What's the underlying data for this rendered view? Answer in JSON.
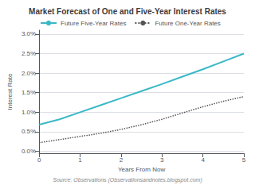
{
  "chart_data": {
    "type": "line",
    "title": "Market Forecast of One and Five-Year Interest Rates",
    "xlabel": "Years From Now",
    "ylabel": "Interest Rate",
    "source": "Source: Observations (Observationsandnotes.blogspot.com)",
    "x": [
      0,
      0.5,
      1,
      1.5,
      2,
      2.5,
      3,
      3.5,
      4,
      4.5,
      5
    ],
    "series": [
      {
        "name": "Future Five-Year Rates",
        "color": "#3ab8c8",
        "line_style": "solid",
        "values": [
          0.0068,
          0.0082,
          0.01,
          0.0118,
          0.0136,
          0.0154,
          0.0172,
          0.0191,
          0.021,
          0.023,
          0.025
        ]
      },
      {
        "name": "Future One-Year Rates",
        "color": "#555555",
        "line_style": "dotted",
        "values": [
          0.0022,
          0.003,
          0.0038,
          0.0046,
          0.0056,
          0.0068,
          0.0082,
          0.0098,
          0.0114,
          0.0128,
          0.014
        ]
      }
    ],
    "xlim": [
      0,
      5
    ],
    "xticks": [
      0,
      1,
      2,
      3,
      4,
      5
    ],
    "ylim": [
      -0.0005,
      0.031
    ],
    "yticks": [
      {
        "value": 0.0,
        "label": "0.0%"
      },
      {
        "value": 0.005,
        "label": "0.5%"
      },
      {
        "value": 0.01,
        "label": "1.0%"
      },
      {
        "value": 0.015,
        "label": "1.5%"
      },
      {
        "value": 0.02,
        "label": "2.0%"
      },
      {
        "value": 0.025,
        "label": "2.5%"
      },
      {
        "value": 0.03,
        "label": "3.0%"
      }
    ],
    "grid": "y",
    "legend": "upper left"
  }
}
